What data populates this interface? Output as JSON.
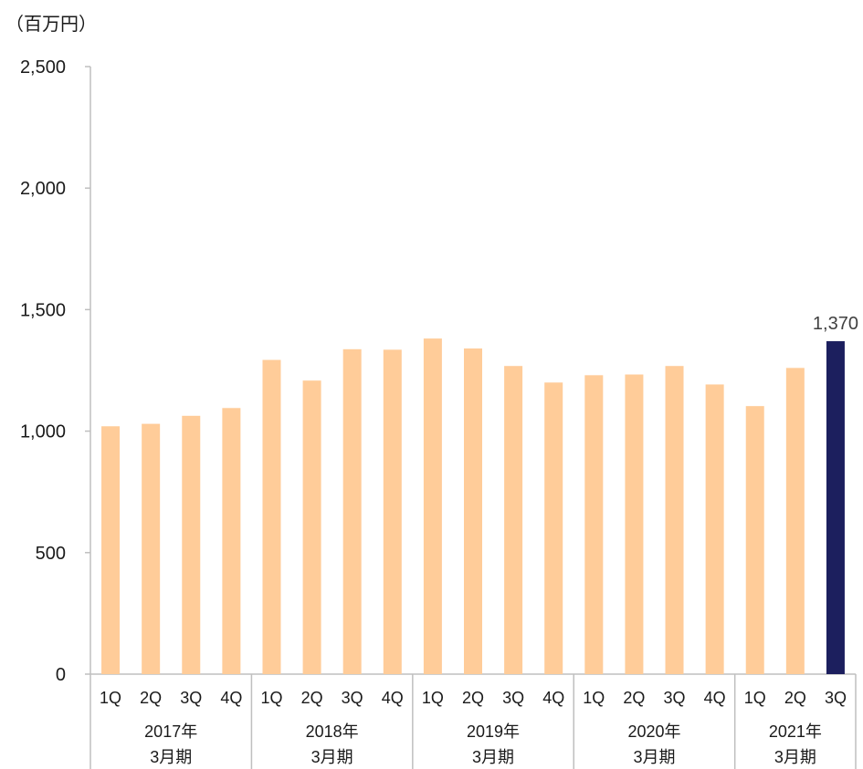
{
  "chart_data": {
    "type": "bar",
    "unit_label": "（百万円）",
    "ylim": [
      0,
      2500
    ],
    "yticks": [
      "0",
      "500",
      "1,000",
      "1,500",
      "2,000",
      "2,500"
    ],
    "categories": [
      "1Q",
      "2Q",
      "3Q",
      "4Q",
      "1Q",
      "2Q",
      "3Q",
      "4Q",
      "1Q",
      "2Q",
      "3Q",
      "4Q",
      "1Q",
      "2Q",
      "3Q",
      "4Q",
      "1Q",
      "2Q",
      "3Q"
    ],
    "groups": [
      {
        "year": "2017年",
        "period": "3月期"
      },
      {
        "year": "2018年",
        "period": "3月期"
      },
      {
        "year": "2019年",
        "period": "3月期"
      },
      {
        "year": "2020年",
        "period": "3月期"
      },
      {
        "year": "2021年",
        "period": "3月期"
      }
    ],
    "values": [
      1020,
      1030,
      1063,
      1095,
      1293,
      1208,
      1337,
      1335,
      1381,
      1340,
      1268,
      1200,
      1230,
      1233,
      1268,
      1192,
      1103,
      1260,
      1370
    ],
    "highlight_index": 18,
    "highlight_label": "1,370",
    "colors": {
      "bar": "#FFCC99",
      "highlight": "#1C1F5E",
      "axis": "#BFBFBF",
      "text": "#1a1a1a",
      "label": "#404040"
    }
  }
}
